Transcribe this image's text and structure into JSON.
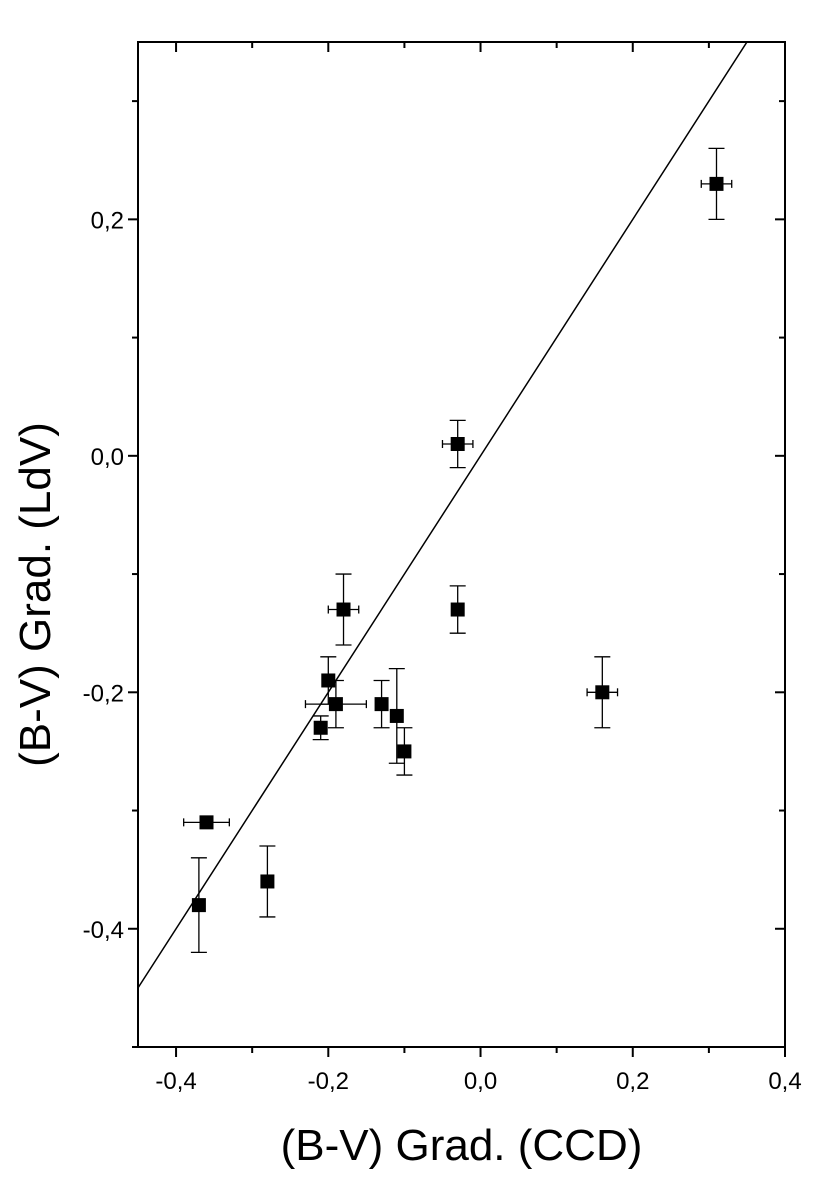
{
  "chart_data": {
    "type": "scatter",
    "title": "",
    "xlabel": "(B-V) Grad. (CCD)",
    "ylabel": "(B-V) Grad. (LdV)",
    "xlim": [
      -0.45,
      0.4
    ],
    "ylim": [
      -0.5,
      0.35
    ],
    "x_ticks": [
      -0.4,
      -0.2,
      0.0,
      0.2,
      0.4
    ],
    "x_tick_labels": [
      "-0,4",
      "-0,2",
      "0,0",
      "0,2",
      "0,4"
    ],
    "y_ticks": [
      -0.4,
      -0.2,
      0.0,
      0.2
    ],
    "y_tick_labels": [
      "-0,4",
      "-0,2",
      "0,0",
      "0,2"
    ],
    "grid": false,
    "legend": "none",
    "marker": "filled-square",
    "color": "#000000",
    "points": [
      {
        "x": -0.36,
        "y": -0.31,
        "xerr": 0.03,
        "yerr": 0
      },
      {
        "x": -0.37,
        "y": -0.38,
        "xerr": 0,
        "yerr": 0.04
      },
      {
        "x": -0.28,
        "y": -0.36,
        "xerr": 0,
        "yerr": 0.03
      },
      {
        "x": -0.21,
        "y": -0.23,
        "xerr": 0,
        "yerr": 0.01
      },
      {
        "x": -0.2,
        "y": -0.19,
        "xerr": 0,
        "yerr": 0.02
      },
      {
        "x": -0.19,
        "y": -0.21,
        "xerr": 0.04,
        "yerr": 0.02
      },
      {
        "x": -0.18,
        "y": -0.13,
        "xerr": 0.02,
        "yerr": 0.03
      },
      {
        "x": -0.13,
        "y": -0.21,
        "xerr": 0,
        "yerr": 0.02
      },
      {
        "x": -0.11,
        "y": -0.22,
        "xerr": 0,
        "yerr": 0.04
      },
      {
        "x": -0.1,
        "y": -0.25,
        "xerr": 0,
        "yerr": 0.02
      },
      {
        "x": -0.03,
        "y": 0.01,
        "xerr": 0.02,
        "yerr": 0.02
      },
      {
        "x": -0.03,
        "y": -0.13,
        "xerr": 0,
        "yerr": 0.02
      },
      {
        "x": 0.16,
        "y": -0.2,
        "xerr": 0.02,
        "yerr": 0.03
      },
      {
        "x": 0.31,
        "y": 0.23,
        "xerr": 0.02,
        "yerr": 0.03
      }
    ],
    "reference_line": {
      "slope": 1,
      "intercept": 0
    }
  }
}
